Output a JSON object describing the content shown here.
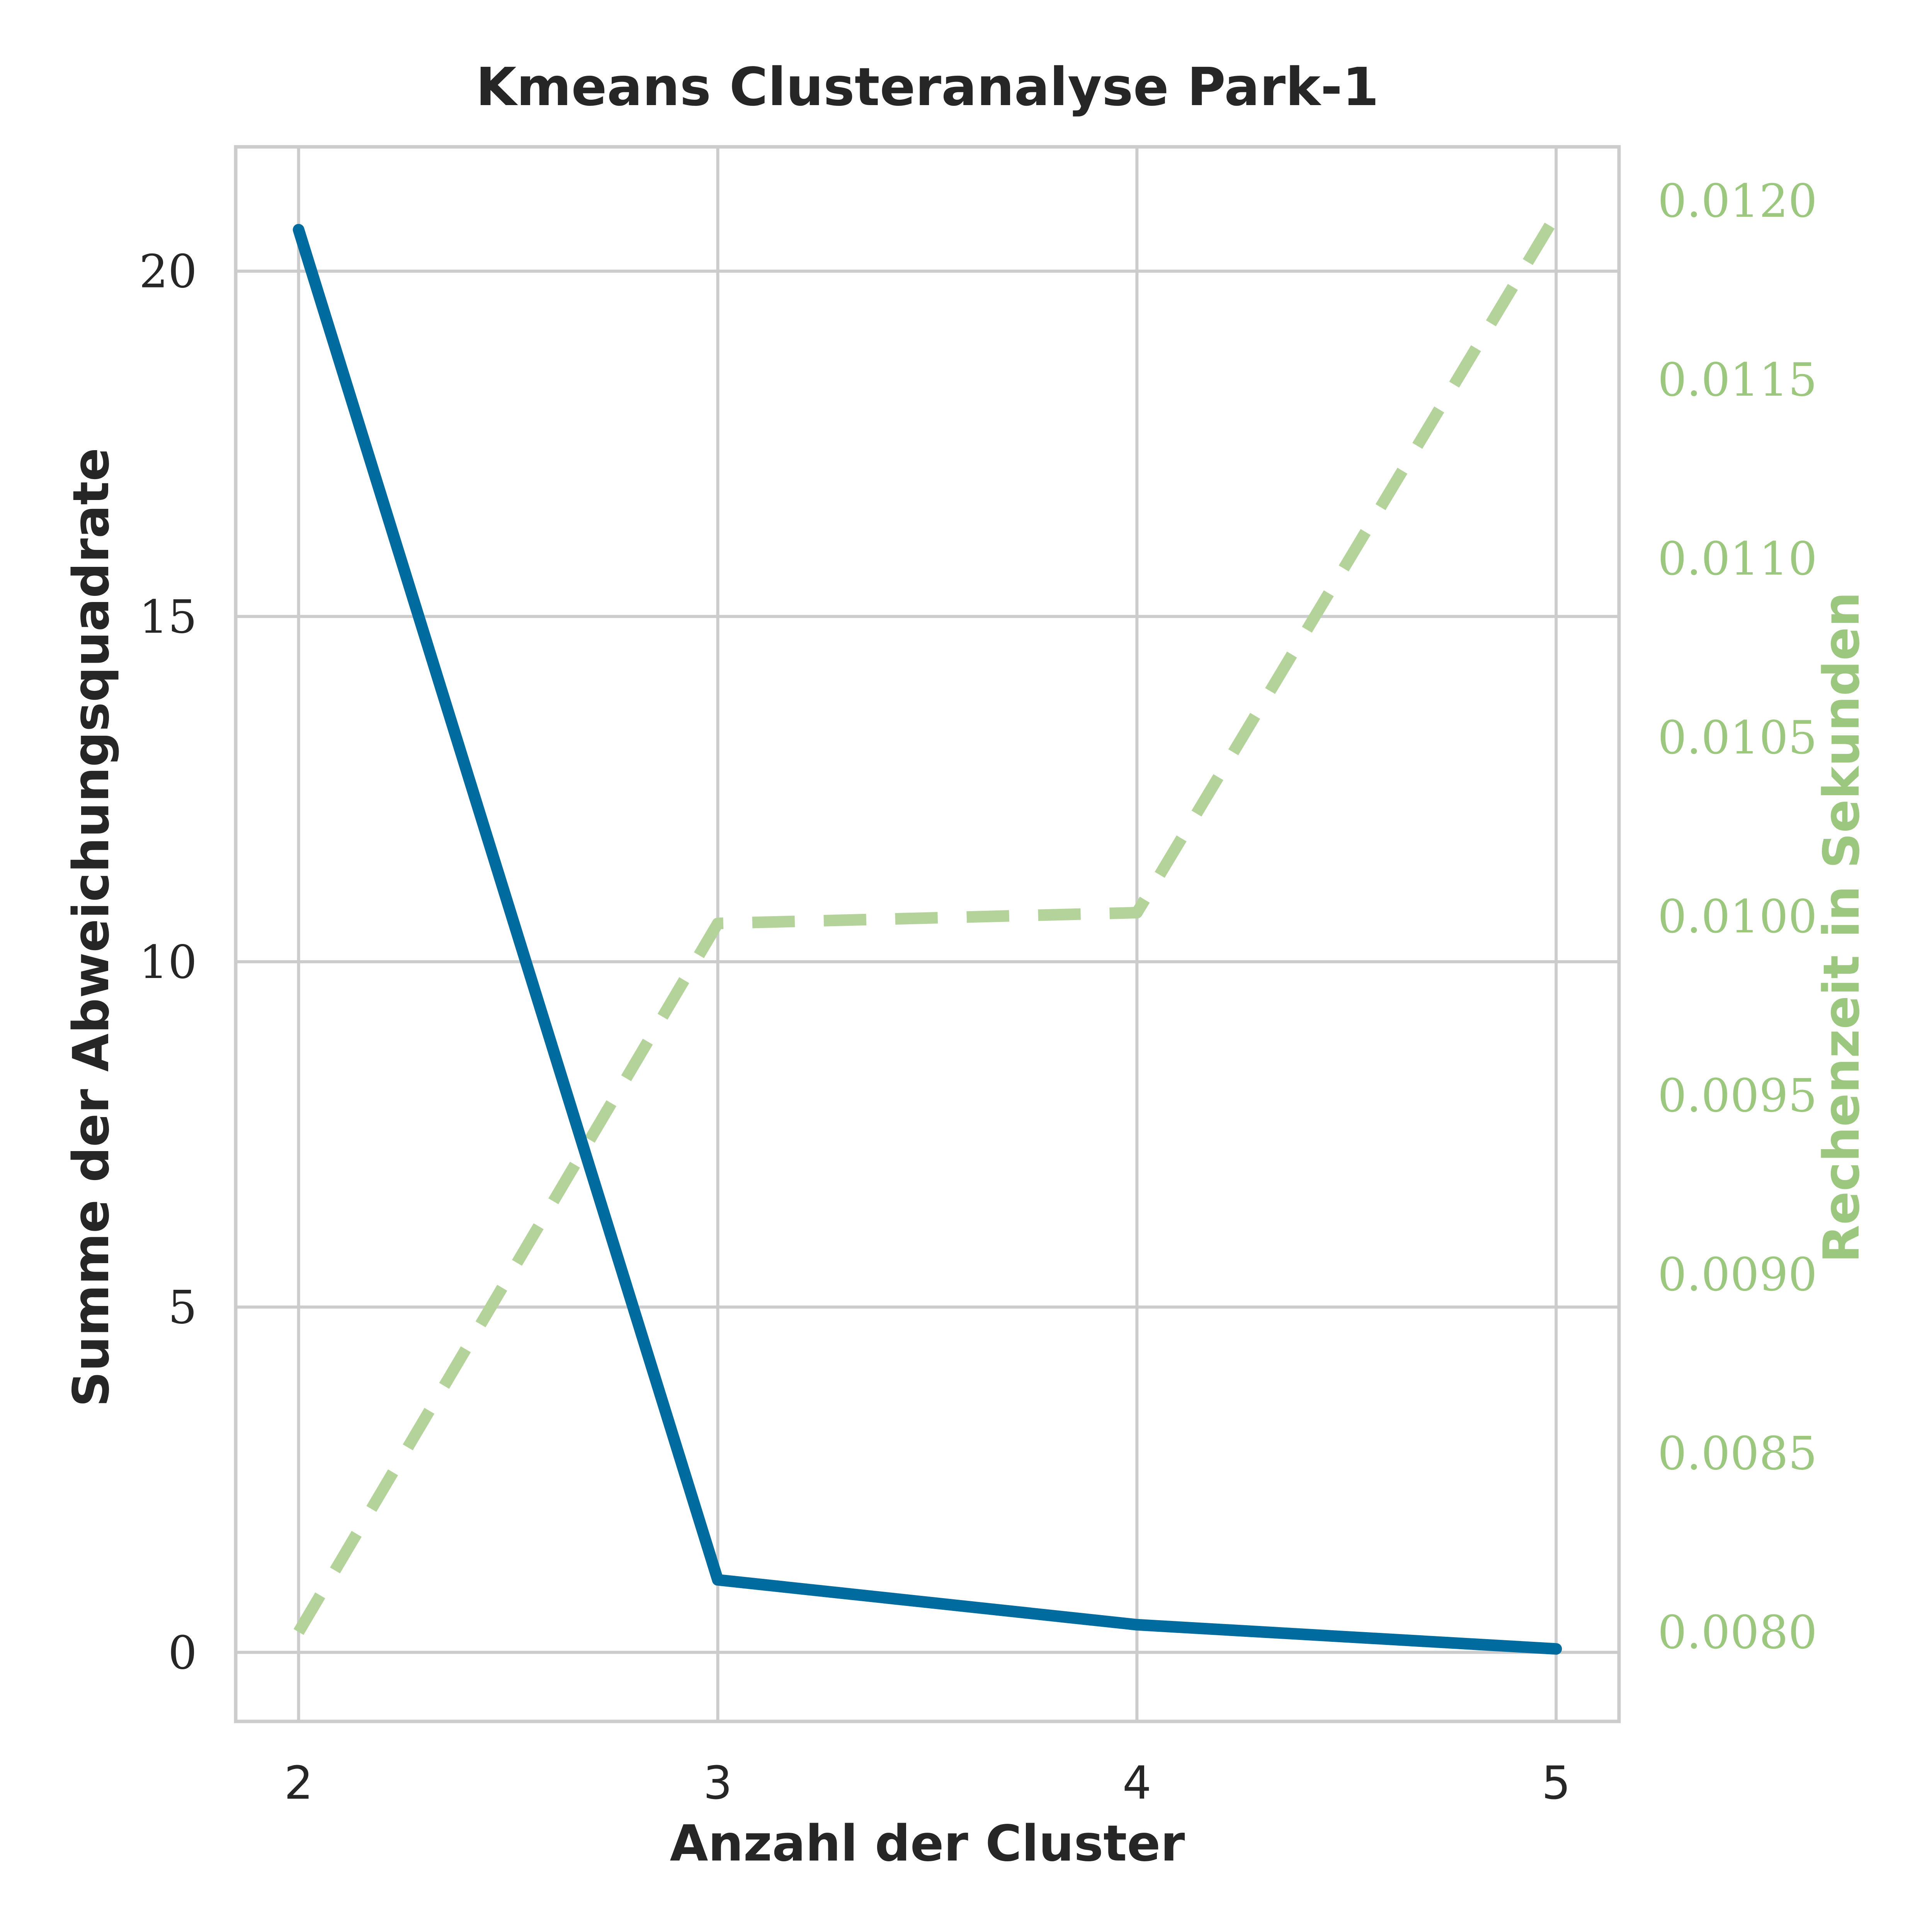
{
  "colors": {
    "primary": "#006B9E",
    "secondary": "#B3D39A",
    "secondary_text": "#9CC77F",
    "grid": "#CCCCCC",
    "text": "#262626"
  },
  "chart_data": {
    "type": "line",
    "title": "Kmeans Clusteranalyse Park-1",
    "xlabel": "Anzahl der Cluster",
    "ylabel": "Summe der Abweichungsquadrate",
    "y2label": "Rechenzeit in Sekunden",
    "x": [
      2,
      3,
      4,
      5
    ],
    "xlim": [
      1.85,
      5.15
    ],
    "ylim": [
      -1.0,
      21.8
    ],
    "y2lim": [
      0.00775,
      0.01215
    ],
    "x_ticks": [
      2,
      3,
      4,
      5
    ],
    "y_ticks": [
      0,
      5,
      10,
      15,
      20
    ],
    "y2_ticks": [
      "0.0080",
      "0.0085",
      "0.0090",
      "0.0095",
      "0.0100",
      "0.0105",
      "0.0110",
      "0.0115",
      "0.0120"
    ],
    "grid": true,
    "series": [
      {
        "axis": "left",
        "style": "solid",
        "color": "#006B9E",
        "values": [
          20.6,
          1.05,
          0.4,
          0.05
        ]
      },
      {
        "axis": "right",
        "style": "dashed",
        "color": "#B3D39A",
        "values": [
          0.008,
          0.00998,
          0.01001,
          0.01196
        ]
      }
    ]
  }
}
